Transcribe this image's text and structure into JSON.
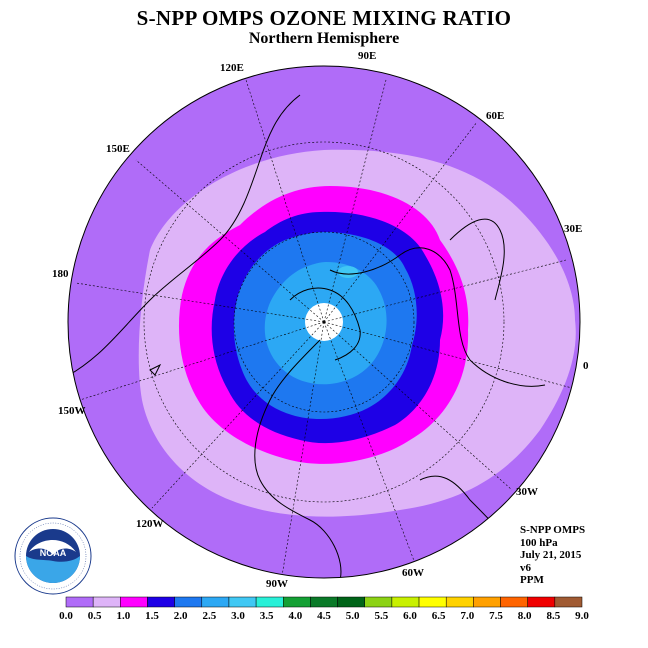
{
  "title": "S-NPP OMPS OZONE MIXING RATIO",
  "subtitle": "Northern Hemisphere",
  "map": {
    "projection": "north polar stereographic",
    "longitude_labels": [
      "120E",
      "90E",
      "60E",
      "150E",
      "30E",
      "180",
      "0",
      "150W",
      "30W",
      "120W",
      "60W",
      "90W"
    ],
    "center_missing_data": true
  },
  "info": {
    "instrument": "S-NPP OMPS",
    "level": "100 hPa",
    "date": "July 21, 2015",
    "version": "v6",
    "units": "PPM"
  },
  "colorbar": {
    "ticks": [
      "0.0",
      "0.5",
      "1.0",
      "1.5",
      "2.0",
      "2.5",
      "3.0",
      "3.5",
      "4.0",
      "4.5",
      "5.0",
      "5.5",
      "6.0",
      "6.5",
      "7.0",
      "7.5",
      "8.0",
      "8.5",
      "9.0"
    ],
    "colors": [
      "#b06cf8",
      "#deb4f8",
      "#ff00ff",
      "#1e00e6",
      "#1e78f0",
      "#2ca8f4",
      "#40c8f4",
      "#28f0d8",
      "#14a034",
      "#0a7a28",
      "#006418",
      "#8cd214",
      "#c8f000",
      "#ffff00",
      "#ffd200",
      "#ffa000",
      "#ff6400",
      "#f00000",
      "#a05a32"
    ]
  },
  "logo": {
    "text": "NOAA",
    "ring_text": "NATIONAL OCEANIC AND ATMOSPHERIC ADMINISTRATION · U.S. DEPARTMENT OF COMMERCE"
  },
  "colors": {
    "outer_band": "#b06cf8",
    "mid_band": "#deb4f8",
    "magenta_band": "#ff00ff",
    "blue_band": "#1e00e6",
    "inner_band": "#1e78f0",
    "core_band": "#2ca8f4"
  }
}
